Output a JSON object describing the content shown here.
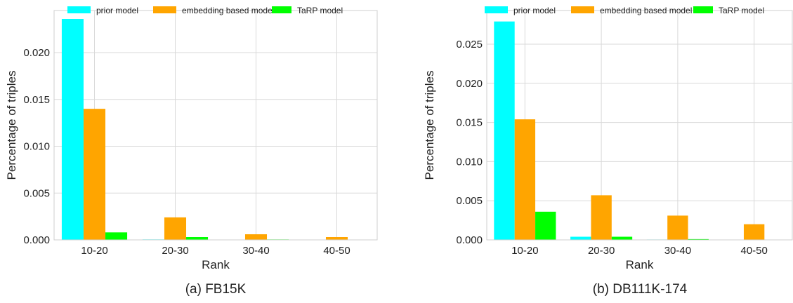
{
  "chart_data": [
    {
      "type": "bar",
      "caption": "(a) FB15K",
      "xlabel": "Rank",
      "ylabel": "Percentage of triples",
      "categories": [
        "10-20",
        "20-30",
        "30-40",
        "40-50"
      ],
      "series": [
        {
          "name": "prior model",
          "color": "#00FFFF",
          "values": [
            0.0236,
            5e-05,
            2e-05,
            1e-05
          ]
        },
        {
          "name": "embedding based model",
          "color": "#FFA500",
          "values": [
            0.014,
            0.0024,
            0.0006,
            0.0003
          ]
        },
        {
          "name": "TaRP model",
          "color": "#00FF00",
          "values": [
            0.0008,
            0.0003,
            5e-05,
            2e-05
          ]
        }
      ],
      "ylim": [
        0,
        0.0245
      ],
      "yticks": [
        "0.000",
        "0.005",
        "0.010",
        "0.015",
        "0.020"
      ],
      "ytick_values": [
        0,
        0.005,
        0.01,
        0.015,
        0.02
      ],
      "grid": true,
      "legend": "top"
    },
    {
      "type": "bar",
      "caption": "(b) DB111K-174",
      "xlabel": "Rank",
      "ylabel": "Percentage of triples",
      "categories": [
        "10-20",
        "20-30",
        "30-40",
        "40-50"
      ],
      "series": [
        {
          "name": "prior model",
          "color": "#00FFFF",
          "values": [
            0.0279,
            0.0004,
            5e-05,
            2e-05
          ]
        },
        {
          "name": "embedding based model",
          "color": "#FFA500",
          "values": [
            0.0154,
            0.0057,
            0.0031,
            0.002
          ]
        },
        {
          "name": "TaRP model",
          "color": "#00FF00",
          "values": [
            0.0036,
            0.0004,
            0.0001,
            3e-05
          ]
        }
      ],
      "ylim": [
        0,
        0.0293
      ],
      "yticks": [
        "0.000",
        "0.005",
        "0.010",
        "0.015",
        "0.020",
        "0.025"
      ],
      "ytick_values": [
        0,
        0.005,
        0.01,
        0.015,
        0.02,
        0.025
      ],
      "grid": true,
      "legend": "top"
    }
  ]
}
